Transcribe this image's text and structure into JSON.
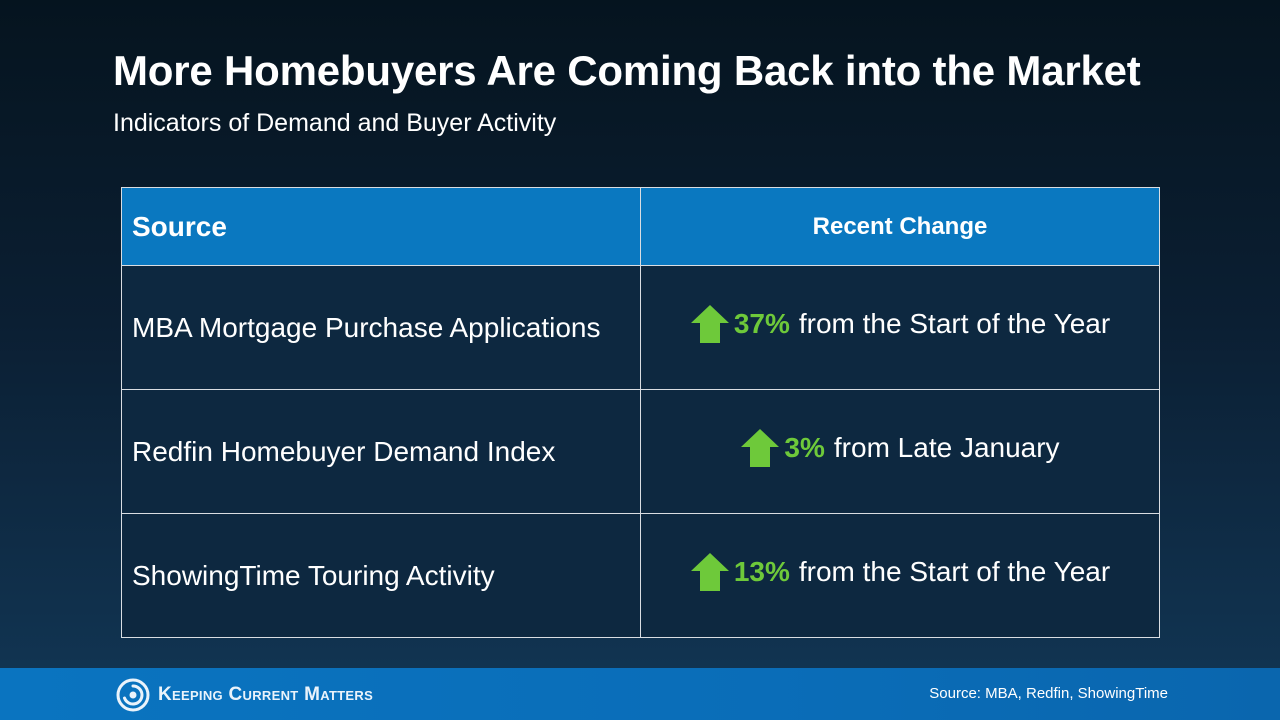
{
  "header": {
    "title": "More Homebuyers Are Coming Back into the Market",
    "subtitle": "Indicators of Demand and Buyer Activity"
  },
  "table": {
    "columns": [
      "Source",
      "Recent Change"
    ],
    "rows": [
      {
        "source": "MBA Mortgage Purchase Applications",
        "pct": "37%",
        "change_text": "from the Start of the Year",
        "direction": "up"
      },
      {
        "source": "Redfin Homebuyer Demand Index",
        "pct": "3%",
        "change_text": "from Late January",
        "direction": "up"
      },
      {
        "source": "ShowingTime Touring Activity",
        "pct": "13%",
        "change_text": "from the Start of the Year",
        "direction": "up"
      }
    ]
  },
  "footer": {
    "brand": "Keeping Current Matters",
    "source_note": "Source: MBA, Redfin, ShowingTime"
  },
  "colors": {
    "header_row": "#0a78c0",
    "body_row": "#0d2840",
    "increase_green": "#6ec93a",
    "footer_bar": "#0a74c0"
  },
  "icons": {
    "change_arrow": "arrow-up-icon",
    "brand_mark": "kcm-spiral-icon"
  }
}
